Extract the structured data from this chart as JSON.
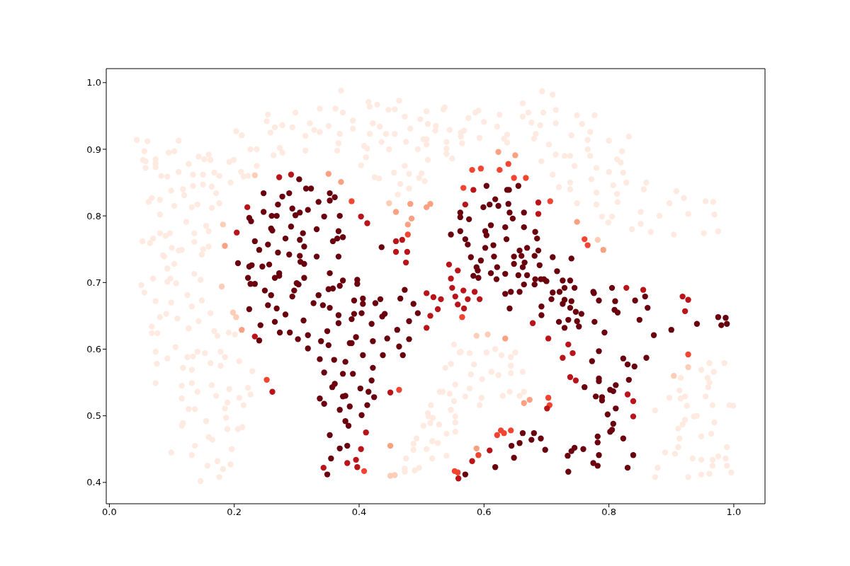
{
  "chart_data": {
    "type": "scatter",
    "marker": "circle",
    "xlim": [
      -0.005,
      1.05
    ],
    "ylim": [
      0.368,
      1.021
    ],
    "xticks": [
      {
        "value": 0,
        "label": "0.0"
      },
      0.2,
      0.4,
      0.6,
      0.8,
      {
        "value": 1,
        "label": "1.0"
      }
    ],
    "yticks": [
      0.4,
      0.5,
      0.6,
      0.7,
      0.8,
      0.9,
      {
        "value": 1,
        "label": "1.0"
      }
    ],
    "series": [
      {
        "color": "#feeae0",
        "x": [
          0.044,
          0.061,
          0.111,
          0.056,
          0.095,
          0.104,
          0.054,
          0.058,
          0.074,
          0.074,
          0.074,
          0.058,
          0.143,
          0.152,
          0.159,
          0.162,
          0.127,
          0.083,
          0.093,
          0.111,
          0.134,
          0.15,
          0.168,
          0.176,
          0.194,
          0.211,
          0.215,
          0.222,
          0.236,
          0.192,
          0.199,
          0.203,
          0.212,
          0.226,
          0.236,
          0.254,
          0.252,
          0.265,
          0.277,
          0.258,
          0.298,
          0.293,
          0.263,
          0.273,
          0.277,
          0.314,
          0.314,
          0.321,
          0.328,
          0.337,
          0.337,
          0.099,
          0.118,
          0.12,
          0.134,
          0.15,
          0.164,
          0.171,
          0.068,
          0.063,
          0.081,
          0.104,
          0.132,
          0.141,
          0.164,
          0.176,
          0.081,
          0.123,
          0.155,
          0.159,
          0.136,
          0.081,
          0.09,
          0.097,
          0.053,
          0.065,
          0.07,
          0.136,
          0.1,
          0.111,
          0.116,
          0.159,
          0.15,
          0.148,
          0.086,
          0.088,
          0.104,
          0.093,
          0.136,
          0.07,
          0.093,
          0.098,
          0.107,
          0.146,
          0.051,
          0.056,
          0.074,
          0.099,
          0.125,
          0.148,
          0.132,
          0.162,
          0.081,
          0.091,
          0.109,
          0.143,
          0.068,
          0.068,
          0.077,
          0.127,
          0.168,
          0.173,
          0.191,
          0.201,
          0.074,
          0.106,
          0.093,
          0.125,
          0.134,
          0.141,
          0.153,
          0.178,
          0.185,
          0.076,
          0.118,
          0.132,
          0.162,
          0.178,
          0.208,
          0.229,
          0.074,
          0.116,
          0.132,
          0.141,
          0.164,
          0.192,
          0.222,
          0.226,
          0.116,
          0.171,
          0.208,
          0.215,
          0.189,
          0.185,
          0.127,
          0.137,
          0.187,
          0.155,
          0.118,
          0.116,
          0.189,
          0.206,
          0.213,
          0.159,
          0.165,
          0.137,
          0.196,
          0.099,
          0.132,
          0.173,
          0.194,
          0.157,
          0.182,
          0.176,
          0.146,
          0.371,
          0.362,
          0.374,
          0.351,
          0.369,
          0.367,
          0.365,
          0.39,
          0.39,
          0.415,
          0.417,
          0.429,
          0.422,
          0.433,
          0.417,
          0.408,
          0.413,
          0.411,
          0.403,
          0.436,
          0.443,
          0.457,
          0.447,
          0.457,
          0.464,
          0.473,
          0.482,
          0.475,
          0.448,
          0.456,
          0.425,
          0.432,
          0.466,
          0.462,
          0.473,
          0.48,
          0.48,
          0.498,
          0.508,
          0.51,
          0.523,
          0.522,
          0.503,
          0.508,
          0.508,
          0.494,
          0.51,
          0.5,
          0.496,
          0.505,
          0.535,
          0.537,
          0.545,
          0.54,
          0.54,
          0.54,
          0.549,
          0.563,
          0.563,
          0.565,
          0.568,
          0.575,
          0.586,
          0.591,
          0.6,
          0.593,
          0.621,
          0.625,
          0.632,
          0.637,
          0.637,
          0.662,
          0.662,
          0.671,
          0.676,
          0.69,
          0.68,
          0.683,
          0.692,
          0.693,
          0.695,
          0.71,
          0.715,
          0.715,
          0.749,
          0.777,
          0.757,
          0.77,
          0.74,
          0.766,
          0.8,
          0.832,
          0.704,
          0.766,
          0.821,
          0.729,
          0.738,
          0.715,
          0.77,
          0.813,
          0.819,
          0.745,
          0.78,
          0.8,
          0.823,
          0.71,
          0.772,
          0.738,
          0.828,
          0.807,
          0.86,
          0.856,
          0.72,
          0.738,
          0.78,
          0.813,
          0.908,
          0.92,
          0.749,
          0.78,
          0.814,
          0.897,
          0.955,
          0.967,
          0.851,
          0.881,
          0.927,
          0.969,
          0.789,
          0.805,
          0.799,
          0.851,
          0.837,
          0.867,
          0.904,
          0.952,
          0.975,
          0.552,
          0.561,
          0.563,
          0.577,
          0.604,
          0.618,
          0.628,
          0.643,
          0.65,
          0.538,
          0.547,
          0.584,
          0.579,
          0.612,
          0.623,
          0.643,
          0.643,
          0.662,
          0.597,
          0.554,
          0.577,
          0.529,
          0.534,
          0.545,
          0.57,
          0.596,
          0.63,
          0.641,
          0.657,
          0.664,
          0.552,
          0.515,
          0.593,
          0.547,
          0.51,
          0.511,
          0.518,
          0.554,
          0.554,
          0.503,
          0.514,
          0.528,
          0.554,
          0.54,
          0.492,
          0.487,
          0.517,
          0.526,
          0.508,
          0.487,
          0.475,
          0.517,
          0.54,
          0.473,
          0.473,
          0.489,
          0.496,
          0.961,
          0.985,
          0.948,
          0.968,
          0.915,
          0.958,
          0.961,
          0.959,
          0.913,
          0.897,
          0.915,
          0.922,
          0.955,
          0.925,
          0.966,
          0.993,
          0.999,
          0.874,
          0.936,
          0.941,
          0.922,
          0.969,
          0.918,
          0.911,
          0.964,
          0.948,
          0.913,
          0.911,
          0.989,
          0.89,
          0.906,
          0.934,
          0.948,
          0.966,
          0.975,
          0.987,
          0.966,
          0.989,
          0.878,
          0.874,
          0.927,
          0.948,
          0.961,
          0.996
        ],
        "values": [
          0.914,
          0.912,
          0.913,
          0.897,
          0.895,
          0.897,
          0.884,
          0.882,
          0.885,
          0.879,
          0.873,
          0.872,
          0.889,
          0.885,
          0.892,
          0.884,
          0.878,
          0.86,
          0.859,
          0.866,
          0.862,
          0.862,
          0.865,
          0.86,
          0.85,
          0.866,
          0.859,
          0.86,
          0.875,
          0.881,
          0.884,
          0.927,
          0.921,
          0.9,
          0.9,
          0.952,
          0.942,
          0.933,
          0.936,
          0.925,
          0.955,
          0.933,
          0.891,
          0.902,
          0.895,
          0.92,
          0.898,
          0.939,
          0.929,
          0.926,
          0.961,
          0.838,
          0.84,
          0.831,
          0.845,
          0.847,
          0.844,
          0.834,
          0.827,
          0.821,
          0.824,
          0.815,
          0.813,
          0.817,
          0.812,
          0.819,
          0.802,
          0.791,
          0.785,
          0.777,
          0.774,
          0.774,
          0.77,
          0.774,
          0.762,
          0.759,
          0.766,
          0.761,
          0.752,
          0.748,
          0.749,
          0.754,
          0.75,
          0.742,
          0.741,
          0.739,
          0.728,
          0.721,
          0.713,
          0.706,
          0.701,
          0.706,
          0.699,
          0.704,
          0.696,
          0.685,
          0.672,
          0.67,
          0.681,
          0.673,
          0.664,
          0.654,
          0.648,
          0.653,
          0.646,
          0.642,
          0.634,
          0.624,
          0.624,
          0.631,
          0.627,
          0.62,
          0.625,
          0.622,
          0.596,
          0.603,
          0.586,
          0.588,
          0.589,
          0.596,
          0.594,
          0.596,
          0.588,
          0.578,
          0.572,
          0.569,
          0.579,
          0.575,
          0.582,
          0.567,
          0.549,
          0.545,
          0.549,
          0.536,
          0.546,
          0.54,
          0.542,
          0.532,
          0.526,
          0.53,
          0.527,
          0.516,
          0.52,
          0.511,
          0.51,
          0.51,
          0.497,
          0.492,
          0.489,
          0.485,
          0.48,
          0.48,
          0.483,
          0.468,
          0.464,
          0.455,
          0.45,
          0.445,
          0.441,
          0.432,
          0.427,
          0.425,
          0.42,
          0.408,
          0.402,
          0.988,
          0.961,
          0.955,
          0.935,
          0.923,
          0.909,
          0.898,
          0.943,
          0.931,
          0.971,
          0.964,
          0.967,
          0.939,
          0.934,
          0.923,
          0.905,
          0.901,
          0.888,
          0.876,
          0.911,
          0.923,
          0.923,
          0.959,
          0.96,
          0.973,
          0.949,
          0.931,
          0.911,
          0.9,
          0.865,
          0.858,
          0.856,
          0.848,
          0.832,
          0.875,
          0.863,
          0.841,
          0.945,
          0.957,
          0.938,
          0.935,
          0.928,
          0.915,
          0.915,
          0.907,
          0.9,
          0.884,
          0.864,
          0.857,
          0.852,
          0.96,
          0.963,
          0.929,
          0.911,
          0.901,
          0.893,
          0.886,
          0.925,
          0.919,
          0.909,
          0.928,
          0.947,
          0.955,
          0.958,
          0.941,
          0.917,
          0.934,
          0.952,
          0.916,
          0.922,
          0.91,
          0.969,
          0.949,
          0.955,
          0.94,
          0.936,
          0.916,
          0.923,
          0.882,
          0.987,
          0.955,
          0.982,
          0.959,
          0.939,
          0.951,
          0.951,
          0.938,
          0.926,
          0.921,
          0.914,
          0.913,
          0.919,
          0.907,
          0.9,
          0.897,
          0.89,
          0.89,
          0.892,
          0.89,
          0.885,
          0.88,
          0.875,
          0.872,
          0.866,
          0.865,
          0.862,
          0.855,
          0.85,
          0.85,
          0.846,
          0.85,
          0.84,
          0.843,
          0.84,
          0.835,
          0.833,
          0.837,
          0.827,
          0.819,
          0.817,
          0.821,
          0.819,
          0.822,
          0.821,
          0.806,
          0.8,
          0.803,
          0.802,
          0.799,
          0.799,
          0.79,
          0.788,
          0.78,
          0.776,
          0.772,
          0.774,
          0.777,
          0.607,
          0.595,
          0.596,
          0.594,
          0.595,
          0.6,
          0.591,
          0.588,
          0.595,
          0.572,
          0.578,
          0.577,
          0.562,
          0.566,
          0.561,
          0.575,
          0.564,
          0.566,
          0.555,
          0.547,
          0.541,
          0.536,
          0.536,
          0.533,
          0.529,
          0.527,
          0.53,
          0.536,
          0.53,
          0.536,
          0.522,
          0.516,
          0.516,
          0.509,
          0.504,
          0.499,
          0.497,
          0.499,
          0.49,
          0.485,
          0.489,
          0.487,
          0.476,
          0.473,
          0.466,
          0.458,
          0.462,
          0.459,
          0.45,
          0.449,
          0.436,
          0.436,
          0.44,
          0.421,
          0.416,
          0.418,
          0.422,
          0.579,
          0.579,
          0.569,
          0.566,
          0.557,
          0.557,
          0.55,
          0.543,
          0.538,
          0.527,
          0.526,
          0.529,
          0.529,
          0.515,
          0.516,
          0.516,
          0.515,
          0.508,
          0.499,
          0.5,
          0.494,
          0.49,
          0.487,
          0.481,
          0.473,
          0.469,
          0.466,
          0.453,
          0.453,
          0.445,
          0.443,
          0.436,
          0.434,
          0.434,
          0.439,
          0.436,
          0.425,
          0.425,
          0.422,
          0.408,
          0.408,
          0.412,
          0.413,
          0.415
        ]
      },
      {
        "color": "#fdcdb8",
        "x": [
          0.448,
          0.782,
          0.233,
          0.198,
          0.203,
          0.45,
          0.457,
          0.606,
          0.588,
          0.904,
          0.927,
          0.182,
          0.18
        ],
        "values": [
          0.819,
          0.764,
          0.861,
          0.655,
          0.648,
          0.41,
          0.411,
          0.622,
          0.62,
          0.56,
          0.573,
          0.787,
          0.694
        ]
      },
      {
        "color": "#fca082",
        "x": [
          0.478,
          0.484,
          0.351,
          0.371,
          0.459,
          0.482,
          0.508,
          0.514,
          0.623,
          0.65,
          0.749,
          0.791,
          0.185,
          0.212,
          0.588,
          0.45,
          0.664,
          0.673,
          0.634
        ],
        "values": [
          0.787,
          0.796,
          0.863,
          0.851,
          0.806,
          0.818,
          0.813,
          0.818,
          0.896,
          0.891,
          0.791,
          0.749,
          0.755,
          0.629,
          0.451,
          0.455,
          0.519,
          0.524,
          0.616
        ]
      },
      {
        "color": "#f14431",
        "x": [
          0.388,
          0.478,
          0.581,
          0.595,
          0.625,
          0.639,
          0.648,
          0.667,
          0.567,
          0.706,
          0.761,
          0.766,
          0.252,
          0.408,
          0.464,
          0.565,
          0.621,
          0.627,
          0.632,
          0.643,
          0.591,
          0.553,
          0.558,
          0.703,
          0.705,
          0.927
        ],
        "values": [
          0.822,
          0.772,
          0.869,
          0.871,
          0.869,
          0.878,
          0.857,
          0.857,
          0.842,
          0.822,
          0.765,
          0.756,
          0.554,
          0.417,
          0.539,
          0.648,
          0.471,
          0.478,
          0.474,
          0.478,
          0.441,
          0.417,
          0.415,
          0.527,
          0.516,
          0.592
        ]
      },
      {
        "color": "#b91419",
        "x": [
          0.272,
          0.291,
          0.221,
          0.204,
          0.403,
          0.413,
          0.459,
          0.469,
          0.459,
          0.477,
          0.475,
          0.583,
          0.57,
          0.687,
          0.687,
          0.544,
          0.558,
          0.547,
          0.233,
          0.261,
          0.343,
          0.411,
          0.403,
          0.381,
          0.395,
          0.397,
          0.45,
          0.508,
          0.519,
          0.531,
          0.526,
          0.514,
          0.508,
          0.549,
          0.554,
          0.567,
          0.574,
          0.585,
          0.593,
          0.558,
          0.568,
          0.678,
          0.609,
          0.581,
          0.559,
          0.828,
          0.855,
          0.918,
          0.927,
          0.922,
          0.703,
          0.735,
          0.742,
          0.726,
          0.738,
          0.747,
          0.83,
          0.839,
          0.839,
          0.701
        ],
        "values": [
          0.858,
          0.862,
          0.813,
          0.775,
          0.799,
          0.789,
          0.762,
          0.764,
          0.746,
          0.746,
          0.73,
          0.839,
          0.817,
          0.82,
          0.803,
          0.727,
          0.718,
          0.706,
          0.619,
          0.536,
          0.422,
          0.475,
          0.45,
          0.429,
          0.434,
          0.423,
          0.535,
          0.684,
          0.678,
          0.675,
          0.66,
          0.65,
          0.632,
          0.692,
          0.679,
          0.688,
          0.675,
          0.686,
          0.675,
          0.667,
          0.661,
          0.639,
          0.448,
          0.432,
          0.406,
          0.692,
          0.689,
          0.679,
          0.674,
          0.657,
          0.616,
          0.607,
          0.594,
          0.587,
          0.558,
          0.553,
          0.532,
          0.522,
          0.499,
          0.511
        ]
      },
      {
        "color": "#6a000d",
        "x": [
          0.304,
          0.315,
          0.323,
          0.247,
          0.288,
          0.277,
          0.335,
          0.27,
          0.247,
          0.293,
          0.318,
          0.26,
          0.268,
          0.298,
          0.305,
          0.224,
          0.227,
          0.344,
          0.259,
          0.261,
          0.291,
          0.332,
          0.31,
          0.233,
          0.282,
          0.305,
          0.254,
          0.312,
          0.24,
          0.27,
          0.288,
          0.305,
          0.332,
          0.306,
          0.312,
          0.206,
          0.224,
          0.228,
          0.245,
          0.256,
          0.272,
          0.272,
          0.265,
          0.222,
          0.312,
          0.226,
          0.233,
          0.3,
          0.303,
          0.604,
          0.637,
          0.64,
          0.655,
          0.618,
          0.599,
          0.609,
          0.623,
          0.639,
          0.562,
          0.562,
          0.576,
          0.641,
          0.646,
          0.664,
          0.611,
          0.562,
          0.547,
          0.602,
          0.604,
          0.634,
          0.664,
          0.682,
          0.57,
          0.574,
          0.636,
          0.685,
          0.602,
          0.615,
          0.669,
          0.687,
          0.648,
          0.657,
          0.66,
          0.681,
          0.579,
          0.595,
          0.616,
          0.648,
          0.665,
          0.662,
          0.689,
          0.588,
          0.59,
          0.611,
          0.621,
          0.634,
          0.583,
          0.591,
          0.62,
          0.655,
          0.669,
          0.682,
          0.691,
          0.696,
          0.664,
          0.681,
          0.353,
          0.353,
          0.361,
          0.369,
          0.367,
          0.374,
          0.365,
          0.358,
          0.367,
          0.353,
          0.374,
          0.369,
          0.397,
          0.397,
          0.436,
          0.71,
          0.74,
          0.717,
          0.726,
          0.738,
          0.7,
          0.249,
          0.259,
          0.224,
          0.254,
          0.268,
          0.296,
          0.293,
          0.335,
          0.327,
          0.342,
          0.282,
          0.311,
          0.265,
          0.242,
          0.273,
          0.289,
          0.24,
          0.302,
          0.318,
          0.339,
          0.318,
          0.337,
          0.344,
          0.337,
          0.344,
          0.351,
          0.358,
          0.473,
          0.392,
          0.406,
          0.406,
          0.426,
          0.434,
          0.466,
          0.487,
          0.353,
          0.367,
          0.367,
          0.392,
          0.388,
          0.404,
          0.437,
          0.441,
          0.494,
          0.48,
          0.42,
          0.461,
          0.349,
          0.395,
          0.385,
          0.388,
          0.422,
          0.445,
          0.464,
          0.48,
          0.351,
          0.406,
          0.438,
          0.47,
          0.36,
          0.378,
          0.422,
          0.374,
          0.39,
          0.42,
          0.361,
          0.357,
          0.402,
          0.415,
          0.374,
          0.378,
          0.424,
          0.413,
          0.369,
          0.385,
          0.404,
          0.378,
          0.383,
          0.353,
          0.369,
          0.381,
          0.355,
          0.349,
          0.634,
          0.643,
          0.657,
          0.641,
          0.692,
          0.692,
          0.57,
          0.618,
          0.644,
          0.657,
          0.648,
          0.662,
          0.68,
          0.676,
          0.691,
          0.698,
          0.71,
          0.721,
          0.729,
          0.745,
          0.775,
          0.776,
          0.805,
          0.708,
          0.726,
          0.729,
          0.74,
          0.784,
          0.81,
          0.842,
          0.858,
          0.738,
          0.747,
          0.756,
          0.809,
          0.814,
          0.862,
          0.72,
          0.735,
          0.749,
          0.729,
          0.752,
          0.777,
          0.849,
          0.793,
          0.872,
          0.9,
          0.941,
          0.975,
          0.987,
          0.98,
          0.989,
          0.784,
          0.773,
          0.823,
          0.83,
          0.841,
          0.86,
          0.761,
          0.784,
          0.784,
          0.832,
          0.802,
          0.807,
          0.811,
          0.779,
          0.789,
          0.789,
          0.811,
          0.798,
          0.807,
          0.802,
          0.805,
          0.782,
          0.782,
          0.823,
          0.745,
          0.74,
          0.734,
          0.759,
          0.784,
          0.775,
          0.782,
          0.735,
          0.83,
          0.839
        ],
        "values": [
          0.855,
          0.841,
          0.841,
          0.834,
          0.834,
          0.829,
          0.821,
          0.817,
          0.806,
          0.811,
          0.809,
          0.8,
          0.8,
          0.801,
          0.805,
          0.797,
          0.792,
          0.799,
          0.781,
          0.778,
          0.784,
          0.78,
          0.774,
          0.762,
          0.766,
          0.764,
          0.757,
          0.754,
          0.749,
          0.745,
          0.742,
          0.74,
          0.739,
          0.731,
          0.728,
          0.729,
          0.724,
          0.726,
          0.724,
          0.727,
          0.714,
          0.71,
          0.707,
          0.707,
          0.707,
          0.698,
          0.698,
          0.699,
          0.697,
          0.845,
          0.839,
          0.839,
          0.845,
          0.825,
          0.813,
          0.817,
          0.815,
          0.818,
          0.805,
          0.798,
          0.795,
          0.805,
          0.796,
          0.805,
          0.786,
          0.777,
          0.772,
          0.777,
          0.771,
          0.783,
          0.783,
          0.776,
          0.765,
          0.757,
          0.765,
          0.766,
          0.752,
          0.756,
          0.752,
          0.748,
          0.739,
          0.748,
          0.74,
          0.74,
          0.738,
          0.733,
          0.739,
          0.728,
          0.73,
          0.723,
          0.726,
          0.723,
          0.718,
          0.714,
          0.723,
          0.713,
          0.71,
          0.707,
          0.705,
          0.711,
          0.711,
          0.705,
          0.705,
          0.705,
          0.697,
          0.697,
          0.834,
          0.823,
          0.828,
          0.8,
          0.777,
          0.768,
          0.766,
          0.762,
          0.739,
          0.714,
          0.703,
          0.695,
          0.704,
          0.698,
          0.753,
          0.738,
          0.736,
          0.717,
          0.703,
          0.703,
          0.702,
          0.688,
          0.681,
          0.66,
          0.666,
          0.661,
          0.688,
          0.679,
          0.681,
          0.669,
          0.666,
          0.652,
          0.643,
          0.641,
          0.636,
          0.625,
          0.625,
          0.613,
          0.615,
          0.621,
          0.612,
          0.601,
          0.585,
          0.565,
          0.526,
          0.518,
          0.69,
          0.691,
          0.689,
          0.673,
          0.676,
          0.668,
          0.669,
          0.675,
          0.676,
          0.668,
          0.662,
          0.651,
          0.639,
          0.653,
          0.645,
          0.654,
          0.649,
          0.653,
          0.654,
          0.642,
          0.638,
          0.629,
          0.627,
          0.618,
          0.609,
          0.609,
          0.612,
          0.616,
          0.604,
          0.615,
          0.606,
          0.591,
          0.591,
          0.591,
          0.584,
          0.581,
          0.572,
          0.563,
          0.563,
          0.553,
          0.548,
          0.543,
          0.541,
          0.536,
          0.529,
          0.53,
          0.528,
          0.516,
          0.509,
          0.514,
          0.501,
          0.492,
          0.485,
          0.471,
          0.451,
          0.455,
          0.436,
          0.412,
          0.683,
          0.686,
          0.686,
          0.661,
          0.664,
          0.651,
          0.412,
          0.423,
          0.455,
          0.459,
          0.437,
          0.474,
          0.474,
          0.464,
          0.466,
          0.449,
          0.685,
          0.686,
          0.692,
          0.692,
          0.686,
          0.684,
          0.692,
          0.675,
          0.668,
          0.674,
          0.672,
          0.673,
          0.672,
          0.673,
          0.679,
          0.662,
          0.656,
          0.653,
          0.659,
          0.655,
          0.662,
          0.641,
          0.644,
          0.642,
          0.632,
          0.634,
          0.641,
          0.644,
          0.625,
          0.621,
          0.629,
          0.638,
          0.648,
          0.647,
          0.636,
          0.638,
          0.597,
          0.582,
          0.586,
          0.577,
          0.574,
          0.587,
          0.543,
          0.556,
          0.552,
          0.554,
          0.539,
          0.537,
          0.546,
          0.529,
          0.528,
          0.523,
          0.511,
          0.502,
          0.488,
          0.476,
          0.479,
          0.469,
          0.46,
          0.466,
          0.452,
          0.447,
          0.44,
          0.45,
          0.441,
          0.429,
          0.425,
          0.416,
          0.422,
          0.441
        ]
      }
    ]
  }
}
